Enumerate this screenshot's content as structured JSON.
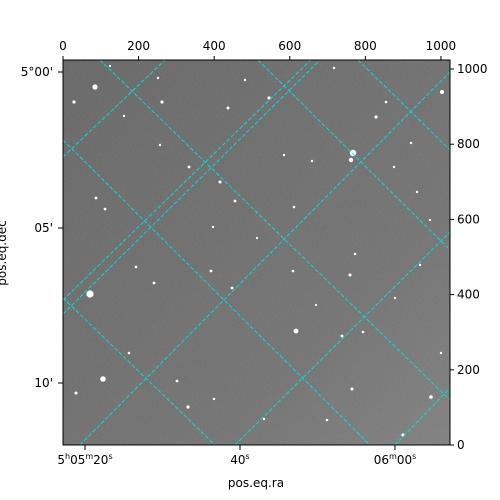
{
  "chart_data": {
    "type": "image",
    "image_description_colors": {
      "background": "#6b6b6b",
      "grid": "#00e5e5",
      "frame": "#000000"
    },
    "xlabel": "pos.eq.ra",
    "ylabel": "pos.eq.dec",
    "pixel_axes": {
      "x": {
        "range": [
          0,
          1024
        ],
        "ticks": [
          0,
          200,
          400,
          600,
          800,
          1000
        ]
      },
      "y": {
        "range": [
          0,
          1024
        ],
        "ticks": [
          0,
          200,
          400,
          600,
          800,
          1000
        ]
      }
    },
    "ra_ticks": [
      {
        "label_parts": [
          "5",
          "h",
          "05",
          "m",
          "20",
          "s"
        ]
      },
      {
        "label_parts": [
          "40",
          "s"
        ]
      },
      {
        "label_parts": [
          "06",
          "m",
          "00",
          "s"
        ]
      }
    ],
    "dec_ticks": [
      {
        "label": "5°00'"
      },
      {
        "label": "05'"
      },
      {
        "label": "10'"
      }
    ],
    "grid": true,
    "grid_style": "dashed"
  }
}
